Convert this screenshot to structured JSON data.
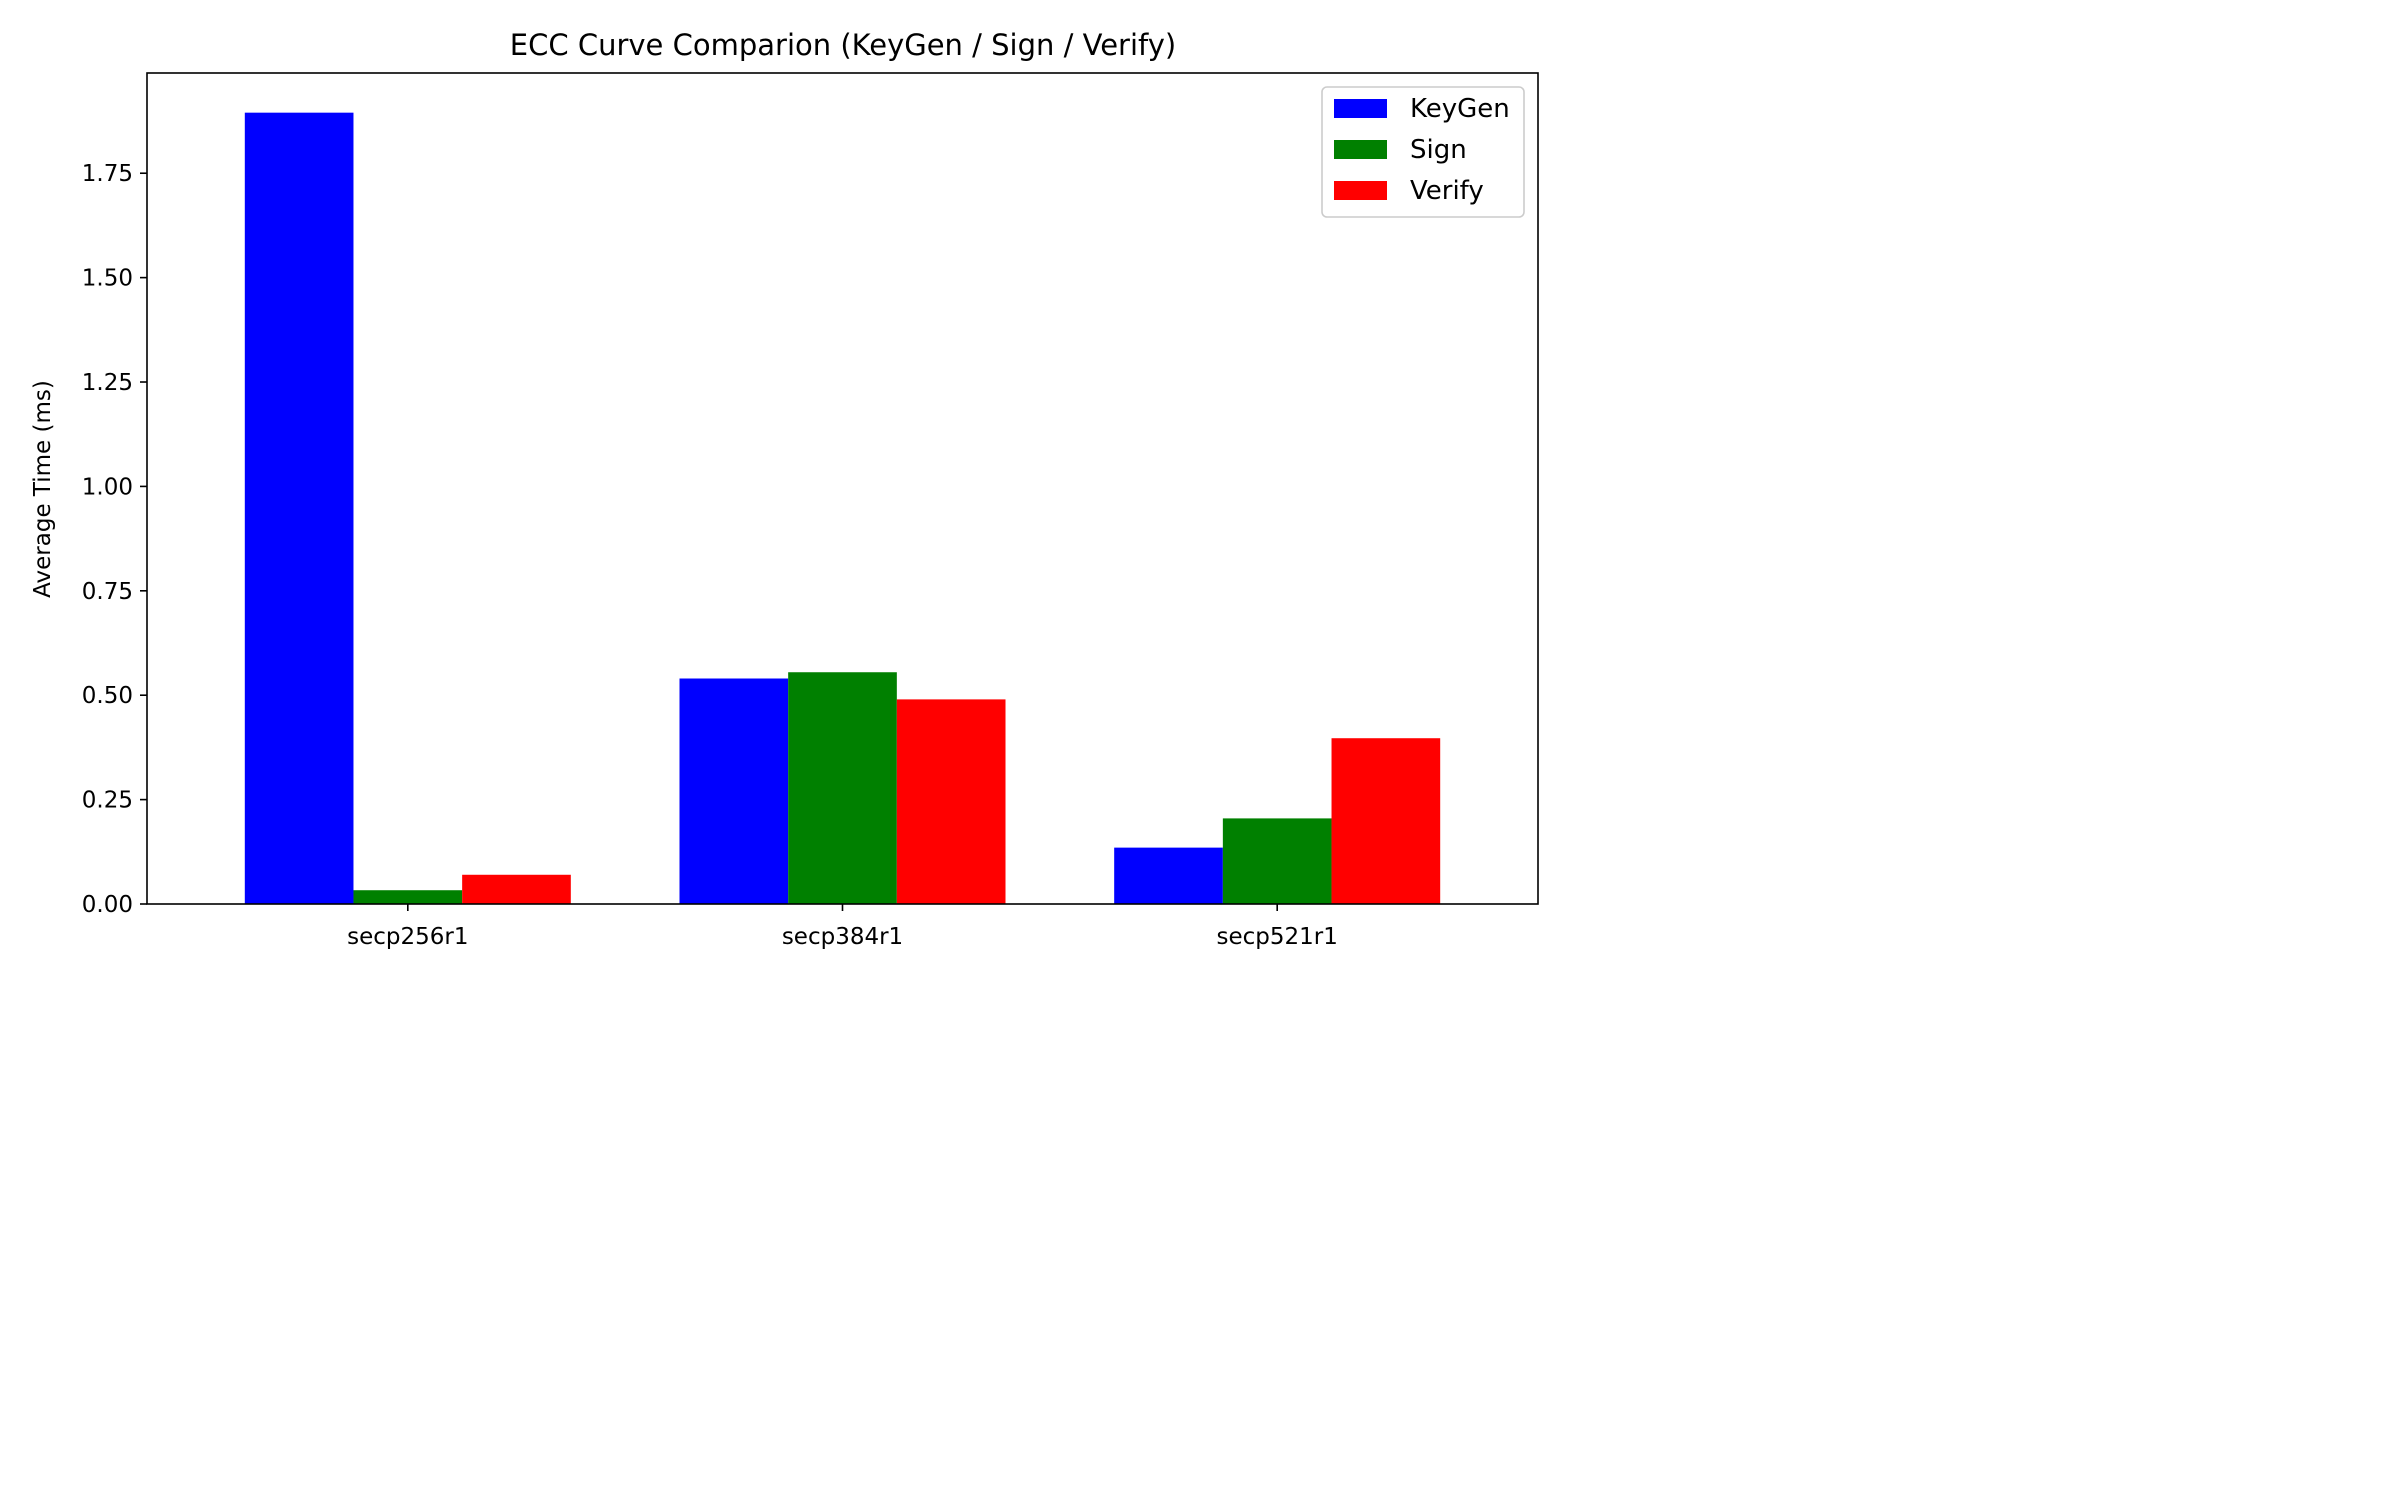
{
  "chart_data": {
    "type": "bar",
    "title": "ECC Curve Comparion (KeyGen / Sign / Verify)",
    "xlabel": "",
    "ylabel": "Average Time (ms)",
    "categories": [
      "secp256r1",
      "secp384r1",
      "secp521r1"
    ],
    "series": [
      {
        "name": "KeyGen",
        "color": "#0000ff",
        "values": [
          1.895,
          0.54,
          0.135
        ]
      },
      {
        "name": "Sign",
        "color": "#008000",
        "values": [
          0.033,
          0.555,
          0.205
        ]
      },
      {
        "name": "Verify",
        "color": "#ff0000",
        "values": [
          0.07,
          0.49,
          0.397
        ]
      }
    ],
    "ylim": [
      0,
      1.99
    ],
    "yticks": [
      0,
      0.25,
      0.5,
      0.75,
      1.0,
      1.25,
      1.5,
      1.75
    ],
    "ytick_labels": [
      "0.00",
      "0.25",
      "0.50",
      "0.75",
      "1.00",
      "1.25",
      "1.50",
      "1.75"
    ],
    "grid": false,
    "legend_position": "top-right"
  }
}
